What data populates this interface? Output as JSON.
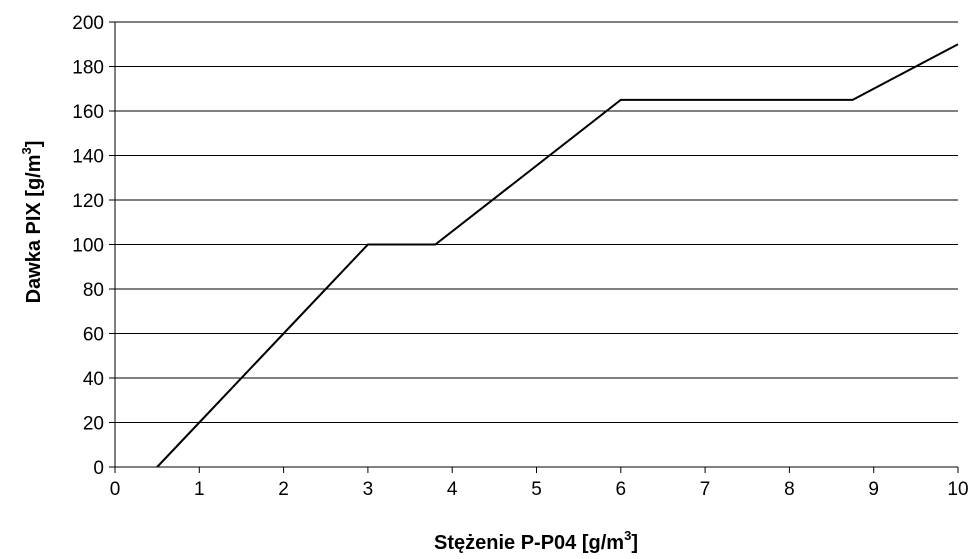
{
  "chart_data": {
    "type": "line",
    "title": "",
    "xlabel": {
      "main": "Stężenie   P-P04  [g/m",
      "sup": "3",
      "tail": "]"
    },
    "ylabel": {
      "main": "Dawka   PIX  [g/m",
      "sup": "3",
      "tail": "]"
    },
    "xlim": [
      0,
      10
    ],
    "ylim": [
      0,
      200
    ],
    "x_ticks": [
      0,
      1,
      2,
      3,
      4,
      5,
      6,
      7,
      8,
      9,
      10
    ],
    "y_ticks": [
      0,
      20,
      40,
      60,
      80,
      100,
      120,
      140,
      160,
      180,
      200
    ],
    "grid": {
      "horizontal": true,
      "vertical": false
    },
    "legend": "none",
    "series": [
      {
        "color": "#000000",
        "x": [
          0.5,
          1,
          2,
          3,
          3.8,
          6,
          8.75,
          10
        ],
        "y": [
          0,
          20,
          60,
          100,
          100,
          165,
          165,
          190
        ]
      }
    ]
  }
}
